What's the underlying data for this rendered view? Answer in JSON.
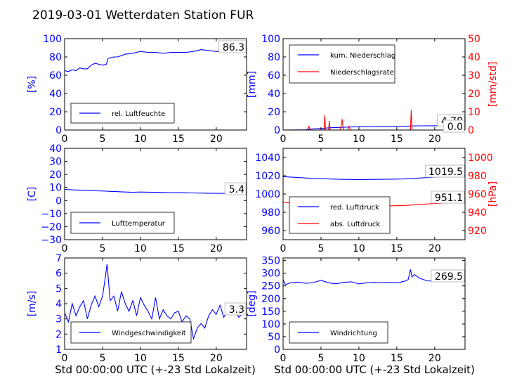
{
  "figure": {
    "title": "2019-03-01 Wetterdaten Station FUR",
    "xlabel": "Std 00:00:00 UTC (+-23 Std Lokalzeit)",
    "colors": {
      "blue": "#0000ff",
      "red": "#ff0000",
      "black": "#000000"
    }
  },
  "chart_data": [
    {
      "type": "line",
      "ylabel": "[%]",
      "xlim": [
        0,
        24
      ],
      "ylim": [
        0,
        100
      ],
      "xticks": [
        0,
        5,
        10,
        15,
        20
      ],
      "yticks": [
        0,
        20,
        40,
        60,
        80,
        100
      ],
      "series": [
        {
          "name": "rel. Luftfeuchte",
          "color": "#0000ff",
          "x": [
            0,
            0.5,
            1,
            1.5,
            2,
            2.5,
            3,
            3.5,
            4,
            4.5,
            5,
            5.5,
            5.7,
            6,
            6.5,
            7,
            8,
            9,
            10,
            11,
            12,
            13,
            14,
            15,
            16,
            17,
            18,
            19,
            20,
            21,
            22,
            23,
            24
          ],
          "y": [
            65,
            64,
            66,
            65,
            68,
            67,
            67,
            71,
            73,
            72,
            71,
            72,
            78,
            79,
            80,
            80,
            83,
            84,
            86,
            85,
            85,
            84,
            85,
            85,
            85,
            86,
            88,
            87,
            86,
            86,
            87,
            86,
            87
          ]
        }
      ],
      "labels": [
        "86.3"
      ]
    },
    {
      "type": "line",
      "ylabel": "[mm]",
      "y2label": "[mm/std]",
      "xlim": [
        0,
        24
      ],
      "ylim": [
        0,
        100
      ],
      "y2lim": [
        0,
        50
      ],
      "xticks": [
        0,
        5,
        10,
        15,
        20
      ],
      "yticks": [
        0,
        20,
        40,
        60,
        80,
        100
      ],
      "y2ticks": [
        0,
        10,
        20,
        30,
        40,
        50
      ],
      "series": [
        {
          "name": "kum. Niederschlag",
          "color": "#0000ff",
          "axis": "left",
          "x": [
            0,
            3,
            3.5,
            5.5,
            6,
            8,
            9,
            10,
            12,
            14,
            16,
            17,
            18,
            20,
            22,
            24
          ],
          "y": [
            0,
            0.2,
            1.0,
            2.0,
            2.5,
            3.0,
            3.4,
            3.5,
            3.6,
            3.8,
            4.0,
            4.5,
            4.6,
            4.7,
            4.78,
            4.78
          ]
        },
        {
          "name": "Niederschlagsrate",
          "color": "#ff0000",
          "axis": "right",
          "x": [
            0,
            3.2,
            3.4,
            3.6,
            5.4,
            5.5,
            5.6,
            6.0,
            6.1,
            6.2,
            7.5,
            7.7,
            7.8,
            7.9,
            8.0,
            8.5,
            8.7,
            8.9,
            16.8,
            16.9,
            17.0,
            18,
            24
          ],
          "y": [
            0,
            0,
            2,
            0,
            0,
            8,
            0,
            0,
            5,
            0,
            0,
            3,
            6,
            2,
            0,
            0,
            2,
            0,
            0,
            11,
            0,
            0,
            0
          ]
        }
      ],
      "labels": [
        "4.78",
        "0.0"
      ]
    },
    {
      "type": "line",
      "ylabel": "[C]",
      "xlim": [
        0,
        24
      ],
      "ylim": [
        -30,
        40
      ],
      "xticks": [
        0,
        5,
        10,
        15,
        20
      ],
      "yticks": [
        -30,
        -20,
        -10,
        0,
        10,
        20,
        30,
        40
      ],
      "series": [
        {
          "name": "Lufttemperatur",
          "color": "#0000ff",
          "x": [
            0,
            1,
            2,
            3,
            4,
            5,
            6,
            7,
            8,
            9,
            10,
            11,
            12,
            13,
            14,
            15,
            16,
            17,
            18,
            19,
            20,
            21,
            22,
            23,
            24
          ],
          "y": [
            8.5,
            8.2,
            8,
            7.8,
            7.5,
            7.3,
            7,
            6.8,
            6.5,
            6.3,
            6.5,
            6.4,
            6.3,
            6.2,
            6.1,
            6,
            5.9,
            5.8,
            5.7,
            5.6,
            5.5,
            5.5,
            5.4,
            5.4,
            5.4
          ]
        }
      ],
      "labels": [
        "5.4"
      ]
    },
    {
      "type": "line",
      "ylabel": "",
      "y2label": "[hPa]",
      "xlim": [
        0,
        24
      ],
      "ylim": [
        950,
        1050
      ],
      "y2lim": [
        910,
        1010
      ],
      "xticks": [
        0,
        5,
        10,
        15,
        20
      ],
      "yticks": [
        960,
        980,
        1000,
        1020,
        1040
      ],
      "y2ticks": [
        920,
        940,
        960,
        980,
        1000
      ],
      "series": [
        {
          "name": "red. Luftdruck",
          "color": "#0000ff",
          "axis": "left",
          "x": [
            0,
            2,
            4,
            6,
            8,
            10,
            12,
            14,
            16,
            18,
            20,
            22,
            24
          ],
          "y": [
            1019,
            1018,
            1017,
            1016.5,
            1016,
            1015.8,
            1016,
            1016.2,
            1016.5,
            1017.5,
            1018.5,
            1019.2,
            1019.5
          ]
        },
        {
          "name": "abs. Luftdruck",
          "color": "#ff0000",
          "axis": "right",
          "x": [
            0,
            2,
            4,
            6,
            8,
            10,
            12,
            14,
            16,
            18,
            20,
            22,
            24
          ],
          "y": [
            951,
            949,
            948,
            947.5,
            947,
            947,
            947,
            947,
            947.5,
            948.5,
            949.5,
            950.5,
            951.1
          ]
        }
      ],
      "labels": [
        "1019.5",
        "951.1"
      ]
    },
    {
      "type": "line",
      "ylabel": "[m/s]",
      "xlim": [
        0,
        24
      ],
      "ylim": [
        1,
        7
      ],
      "xticks": [
        0,
        5,
        10,
        15,
        20
      ],
      "yticks": [
        1,
        2,
        3,
        4,
        5,
        6,
        7
      ],
      "series": [
        {
          "name": "Windgeschwindigkeit",
          "color": "#0000ff",
          "x": [
            0,
            0.5,
            1,
            1.5,
            2,
            2.5,
            3,
            3.5,
            4,
            4.5,
            5,
            5.3,
            5.6,
            6,
            6.5,
            7,
            7.5,
            8,
            8.5,
            9,
            9.5,
            10,
            10.5,
            11,
            11.5,
            12,
            12.5,
            13,
            13.5,
            14,
            14.5,
            15,
            15.5,
            16,
            16.5,
            17,
            17.5,
            18,
            18.5,
            19,
            19.5,
            20,
            20.5,
            21,
            21.5,
            22,
            22.5,
            23,
            23.5,
            24
          ],
          "y": [
            3.4,
            2.8,
            4.0,
            3.2,
            3.8,
            4.2,
            3.0,
            3.9,
            4.5,
            3.8,
            4.5,
            5.5,
            6.6,
            4.2,
            4.5,
            3.5,
            4.8,
            4.0,
            3.5,
            4.2,
            3.2,
            4.4,
            3.9,
            3.5,
            3.0,
            4.4,
            3.0,
            3.6,
            3.2,
            3.0,
            3.4,
            3.5,
            2.8,
            3.2,
            3.0,
            1.7,
            2.4,
            2.7,
            2.4,
            3.2,
            3.6,
            3.3,
            3.9,
            3.1,
            3.6,
            3.3,
            3.5,
            3.1,
            3.4,
            3.3
          ]
        }
      ],
      "labels": [
        "3.3"
      ]
    },
    {
      "type": "line",
      "ylabel": "[deg]",
      "xlim": [
        0,
        24
      ],
      "ylim": [
        0,
        360
      ],
      "xticks": [
        0,
        5,
        10,
        15,
        20
      ],
      "yticks": [
        0,
        50,
        100,
        150,
        200,
        250,
        300,
        350
      ],
      "series": [
        {
          "name": "Windrichtung",
          "color": "#0000ff",
          "x": [
            0,
            0.3,
            1,
            2,
            3,
            4,
            5,
            6,
            7,
            8,
            9,
            10,
            11,
            12,
            13,
            14,
            15,
            16,
            16.5,
            16.8,
            17,
            17.3,
            18,
            19,
            20,
            21,
            22,
            23,
            24
          ],
          "y": [
            275,
            255,
            262,
            265,
            260,
            263,
            272,
            262,
            258,
            264,
            266,
            258,
            262,
            264,
            262,
            264,
            262,
            268,
            275,
            315,
            285,
            295,
            280,
            270,
            268,
            270,
            272,
            270,
            270
          ]
        }
      ],
      "labels": [
        "269.5"
      ]
    }
  ]
}
